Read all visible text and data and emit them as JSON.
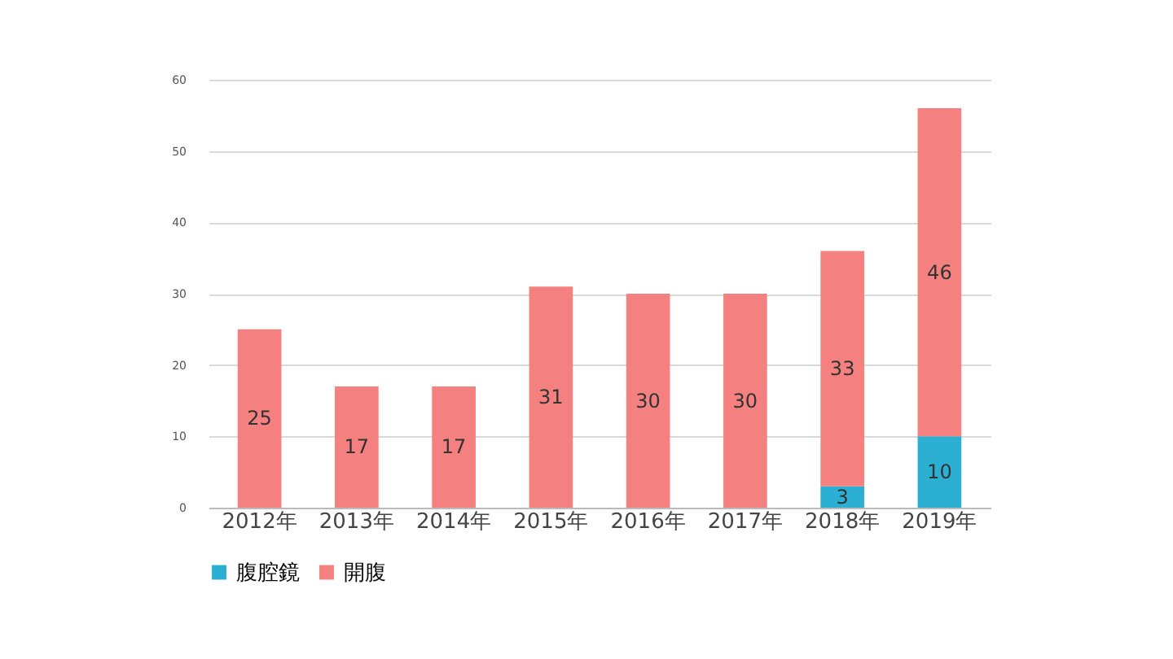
{
  "chart_data": {
    "type": "bar",
    "stacked": true,
    "categories": [
      "2012年",
      "2013年",
      "2014年",
      "2015年",
      "2016年",
      "2017年",
      "2018年",
      "2019年"
    ],
    "series": [
      {
        "name": "腹腔鏡",
        "color": "#2bb0d3",
        "values": [
          null,
          null,
          null,
          null,
          null,
          null,
          3,
          10
        ]
      },
      {
        "name": "開腹",
        "color": "#f4817f",
        "values": [
          25,
          17,
          17,
          31,
          30,
          30,
          33,
          46
        ]
      }
    ],
    "ylim": [
      0,
      60
    ],
    "yticks": [
      0,
      10,
      20,
      30,
      40,
      50,
      60
    ],
    "grid": "y",
    "legend": "bottom",
    "data_labels": true
  }
}
